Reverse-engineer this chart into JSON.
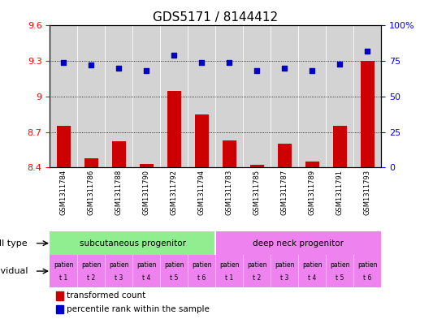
{
  "title": "GDS5171 / 8144412",
  "samples": [
    "GSM1311784",
    "GSM1311786",
    "GSM1311788",
    "GSM1311790",
    "GSM1311792",
    "GSM1311794",
    "GSM1311783",
    "GSM1311785",
    "GSM1311787",
    "GSM1311789",
    "GSM1311791",
    "GSM1311793"
  ],
  "bar_values": [
    8.75,
    8.48,
    8.62,
    8.43,
    9.05,
    8.85,
    8.63,
    8.42,
    8.6,
    8.45,
    8.75,
    9.3
  ],
  "scatter_values": [
    74,
    72,
    70,
    68,
    79,
    74,
    74,
    68,
    70,
    68,
    73,
    82
  ],
  "ylim_left": [
    8.4,
    9.6
  ],
  "ylim_right": [
    0,
    100
  ],
  "yticks_left": [
    8.4,
    8.7,
    9.0,
    9.3,
    9.6
  ],
  "yticks_right": [
    0,
    25,
    50,
    75,
    100
  ],
  "ytick_labels_left": [
    "8.4",
    "8.7",
    "9",
    "9.3",
    "9.6"
  ],
  "ytick_labels_right": [
    "0",
    "25",
    "50",
    "75",
    "100%"
  ],
  "bar_color": "#cc0000",
  "scatter_color": "#0000cc",
  "bar_bottom": 8.4,
  "cell_types": [
    "subcutaneous progenitor",
    "deep neck progenitor"
  ],
  "cell_type_counts": [
    6,
    6
  ],
  "cell_type_colors": [
    "#90ee90",
    "#ee82ee"
  ],
  "individual_labels_top": [
    "patien",
    "patien",
    "patien",
    "patien",
    "patien",
    "patien",
    "patien",
    "patien",
    "patien",
    "patien",
    "patien",
    "patien"
  ],
  "individual_labels_bot": [
    "t 1",
    "t 2",
    "t 3",
    "t 4",
    "t 5",
    "t 6",
    "t 1",
    "t 2",
    "t 3",
    "t 4",
    "t 5",
    "t 6"
  ],
  "individual_color": "#ee82ee",
  "legend_red_label": "transformed count",
  "legend_blue_label": "percentile rank within the sample",
  "label_cell_type": "cell type",
  "label_individual": "individual",
  "bg_color": "#ffffff",
  "sample_bg_color": "#d3d3d3",
  "tick_fontsize": 8,
  "title_fontsize": 11
}
